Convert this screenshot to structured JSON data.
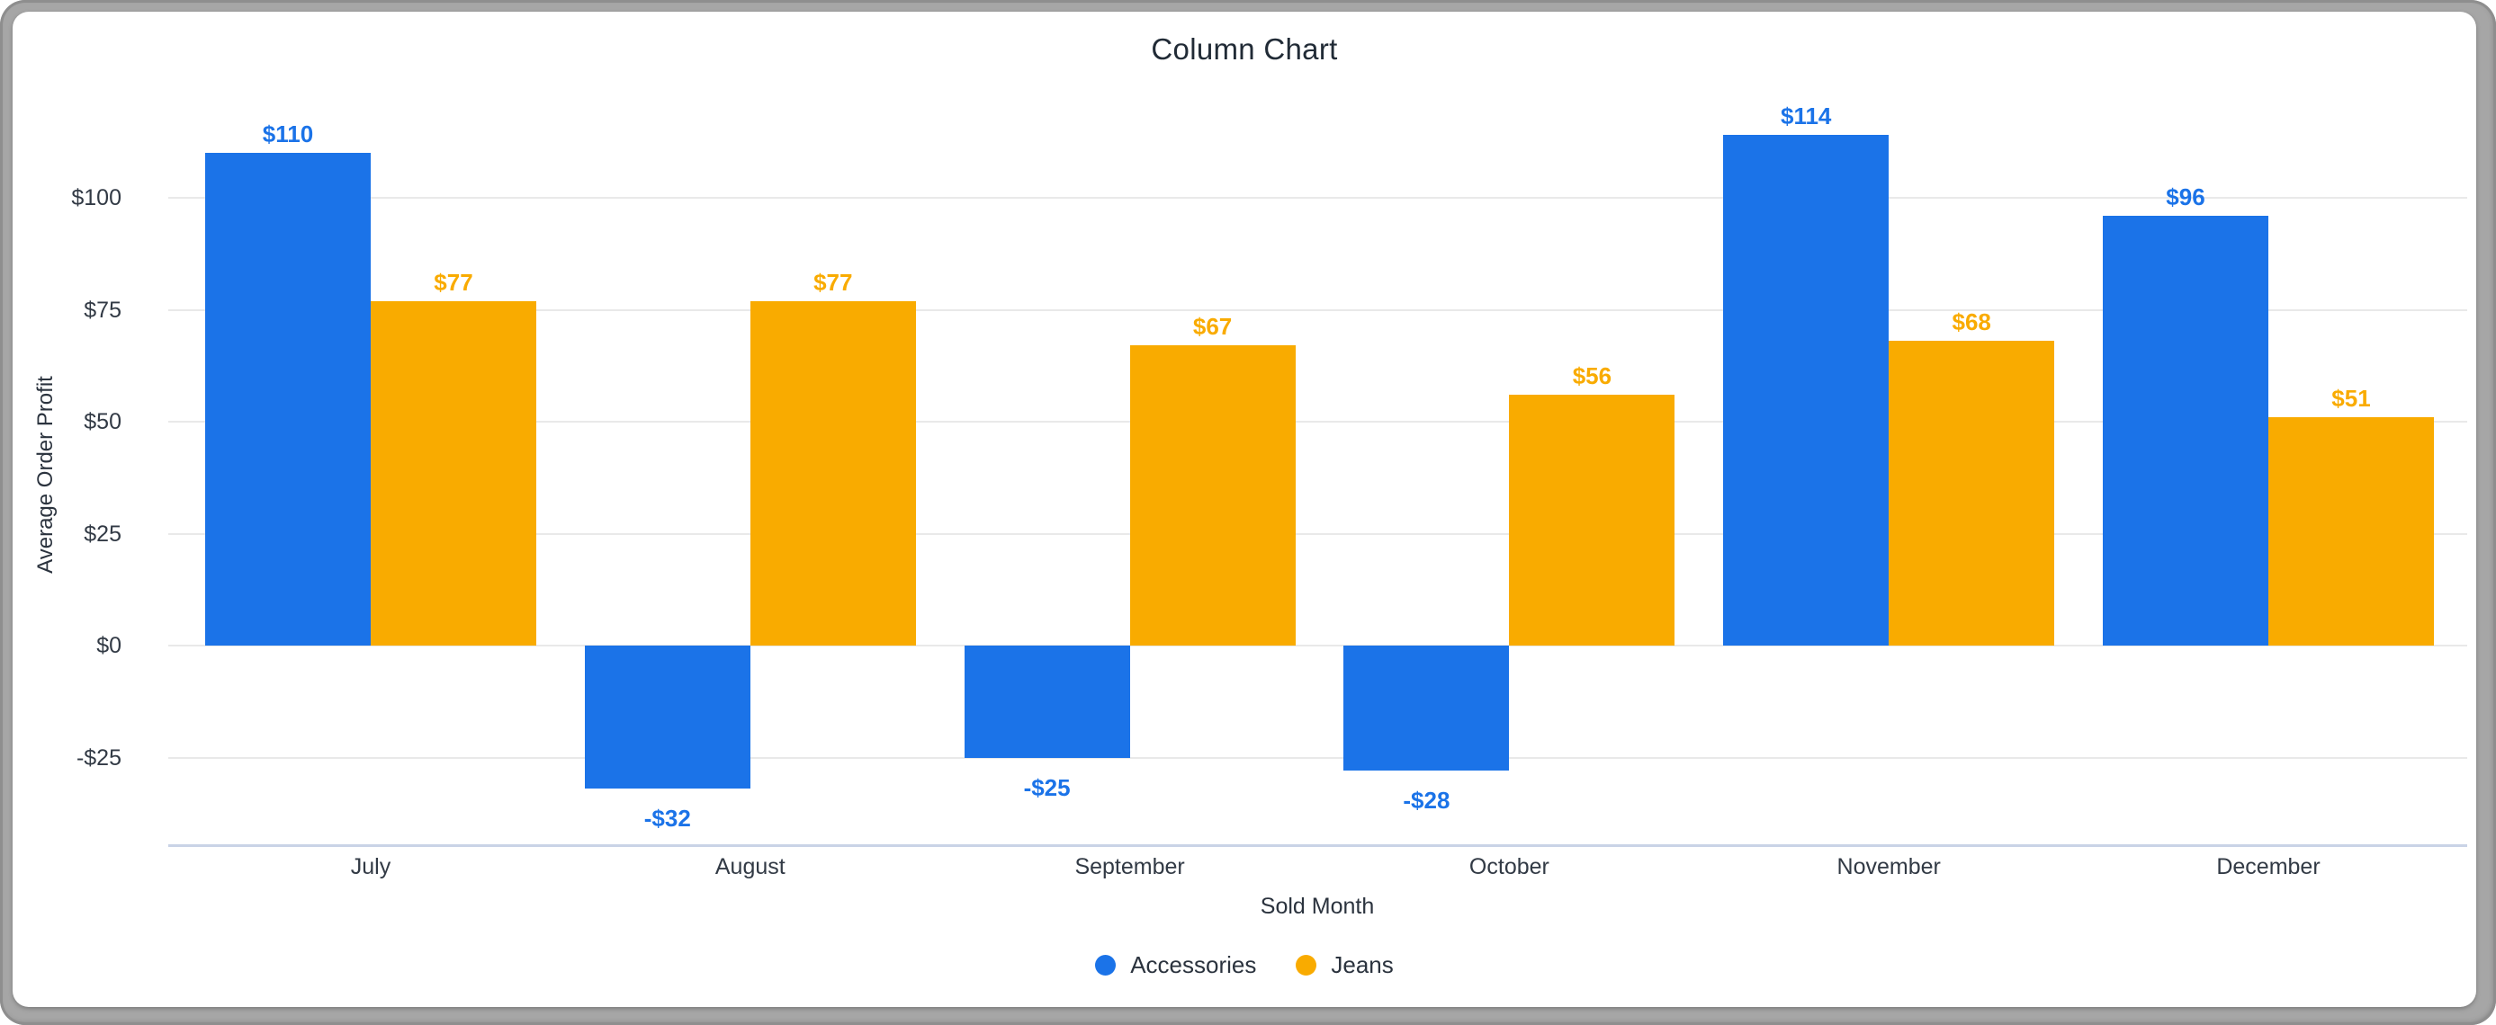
{
  "window": {
    "frame_color": "#a6a6a6",
    "card_color": "#ffffff"
  },
  "chart_data": {
    "type": "bar",
    "title": "Column Chart",
    "xlabel": "Sold Month",
    "ylabel": "Average Order Profit",
    "categories": [
      "July",
      "August",
      "September",
      "October",
      "November",
      "December"
    ],
    "series": [
      {
        "name": "Accessories",
        "color": "#1b73e8",
        "values": [
          110,
          -32,
          -25,
          -28,
          114,
          96
        ],
        "value_labels": [
          "$110",
          "-$32",
          "-$25",
          "-$28",
          "$114",
          "$96"
        ]
      },
      {
        "name": "Jeans",
        "color": "#f9ab00",
        "values": [
          77,
          77,
          67,
          56,
          68,
          51
        ],
        "value_labels": [
          "$77",
          "$77",
          "$67",
          "$56",
          "$68",
          "$51"
        ]
      }
    ],
    "y_ticks": [
      {
        "value": 100,
        "label": "$100"
      },
      {
        "value": 75,
        "label": "$75"
      },
      {
        "value": 50,
        "label": "$50"
      },
      {
        "value": 25,
        "label": "$25"
      },
      {
        "value": 0,
        "label": "$0"
      },
      {
        "value": -25,
        "label": "-$25"
      }
    ],
    "ylim": [
      -45,
      118
    ],
    "grid": true,
    "legend_position": "bottom",
    "colors": {
      "gridline": "#e9e9e9",
      "baseline": "#c9d3e6",
      "tick_text": "#323a45",
      "title_text": "#212b36"
    }
  }
}
